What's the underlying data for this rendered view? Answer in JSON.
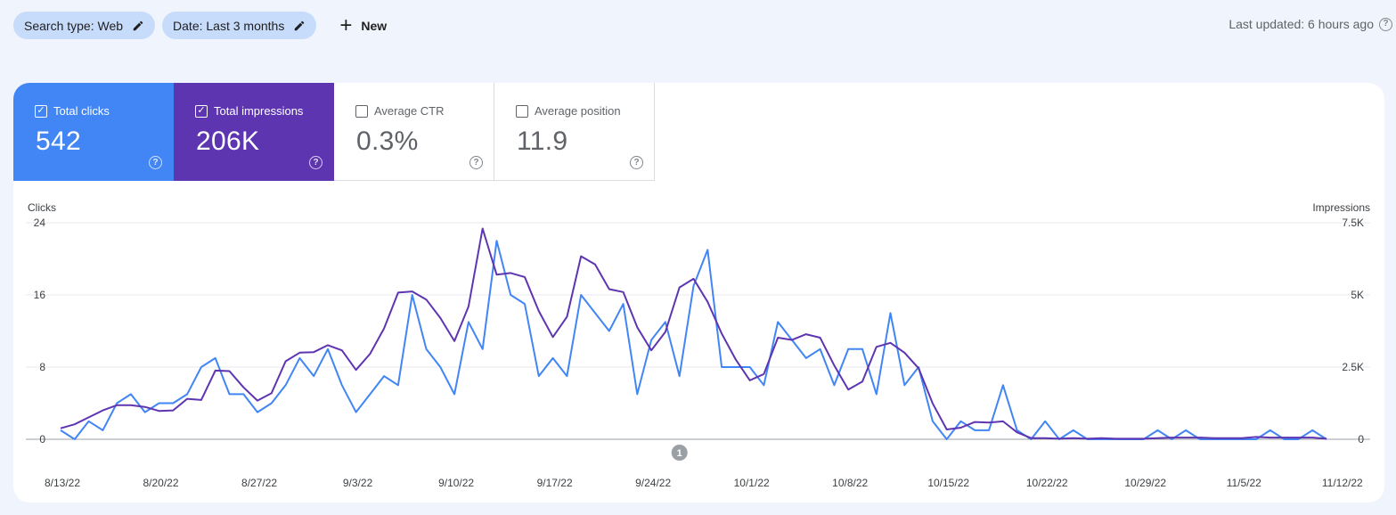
{
  "filters": {
    "search_type": "Search type: Web",
    "date": "Date: Last 3 months",
    "new_label": "New"
  },
  "header": {
    "last_updated": "Last updated: 6 hours ago"
  },
  "metrics": [
    {
      "label": "Total clicks",
      "value": "542",
      "checked": true
    },
    {
      "label": "Total impressions",
      "value": "206K",
      "checked": true
    },
    {
      "label": "Average CTR",
      "value": "0.3%",
      "checked": false
    },
    {
      "label": "Average position",
      "value": "11.9",
      "checked": false
    }
  ],
  "colors": {
    "clicks": "#4285f4",
    "impressions": "#5e35b1",
    "accent_chip": "#c7dbfb"
  },
  "chart_data": {
    "type": "line",
    "left_axis_label": "Clicks",
    "right_axis_label": "Impressions",
    "y_left_ticks": [
      "24",
      "16",
      "8",
      "0"
    ],
    "y_right_ticks": [
      "7.5K",
      "5K",
      "2.5K",
      "0"
    ],
    "ylim_left": [
      0,
      24
    ],
    "ylim_right": [
      0,
      7500
    ],
    "x_tick_labels": [
      "8/13/22",
      "8/20/22",
      "8/27/22",
      "9/3/22",
      "9/10/22",
      "9/17/22",
      "9/24/22",
      "10/1/22",
      "10/8/22",
      "10/15/22",
      "10/22/22",
      "10/29/22",
      "11/5/22",
      "11/12/22"
    ],
    "annotation_label": "1",
    "annotation_day": 44,
    "series": [
      {
        "name": "Clicks",
        "axis": "left",
        "values": [
          1,
          0,
          2,
          1,
          4,
          5,
          3,
          4,
          4,
          5,
          8,
          9,
          5,
          5,
          3,
          4,
          6,
          9,
          7,
          10,
          6,
          3,
          5,
          7,
          6,
          16,
          10,
          8,
          5,
          13,
          10,
          22,
          16,
          15,
          7,
          9,
          7,
          16,
          14,
          12,
          15,
          5,
          11,
          13,
          7,
          17,
          21,
          8,
          8,
          8,
          6,
          13,
          11,
          9,
          10,
          6,
          10,
          10,
          5,
          14,
          6,
          8,
          2,
          0,
          2,
          1,
          1,
          6,
          1,
          0,
          2,
          0,
          1,
          0,
          0,
          0,
          0,
          0,
          1,
          0,
          1,
          0,
          0,
          0,
          0,
          0,
          1,
          0,
          0,
          1,
          0
        ]
      },
      {
        "name": "Impressions",
        "axis": "right",
        "values": [
          380,
          520,
          760,
          1000,
          1180,
          1180,
          1120,
          980,
          1000,
          1400,
          1360,
          2380,
          2360,
          1800,
          1340,
          1600,
          2700,
          3000,
          3020,
          3260,
          3080,
          2400,
          2960,
          3840,
          5080,
          5120,
          4840,
          4200,
          3400,
          4600,
          7300,
          5700,
          5760,
          5620,
          4440,
          3540,
          4240,
          6340,
          6060,
          5200,
          5100,
          3880,
          3080,
          3720,
          5260,
          5560,
          4760,
          3660,
          2760,
          2040,
          2260,
          3520,
          3440,
          3640,
          3520,
          2560,
          1720,
          2000,
          3200,
          3340,
          3000,
          2460,
          1240,
          340,
          400,
          600,
          580,
          620,
          240,
          40,
          40,
          20,
          40,
          20,
          40,
          20,
          20,
          20,
          40,
          60,
          60,
          60,
          40,
          40,
          40,
          80,
          60,
          60,
          60,
          60,
          20
        ]
      }
    ]
  }
}
